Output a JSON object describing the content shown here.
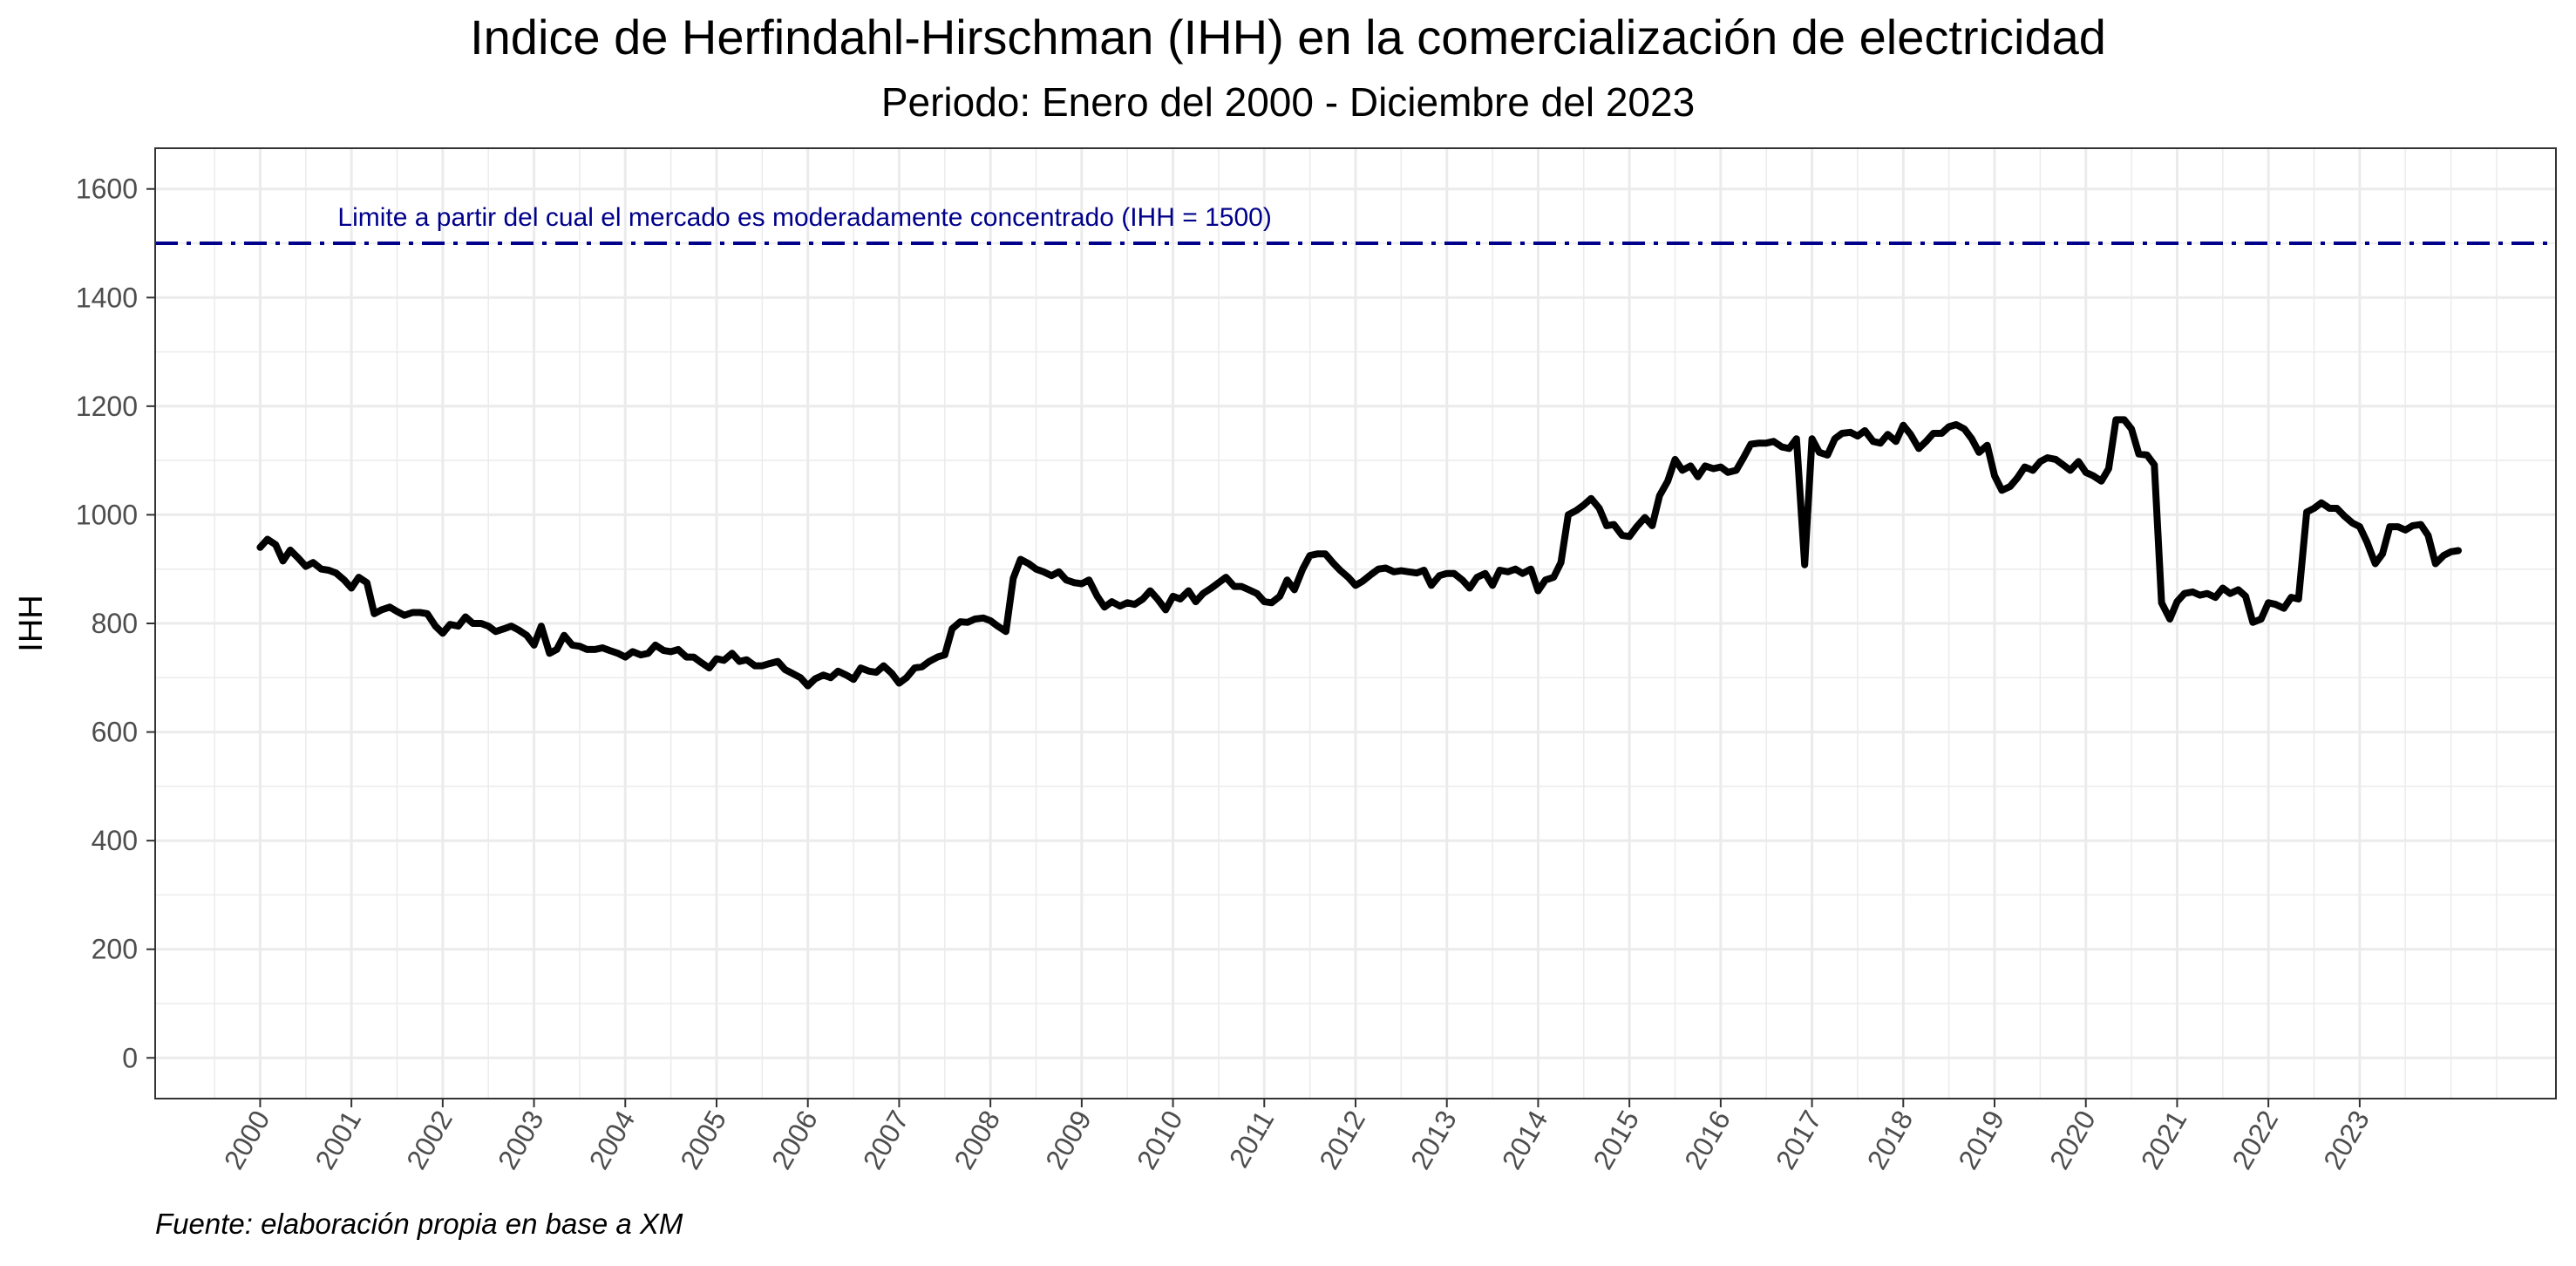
{
  "title": "Indice de Herfindahl-Hirschman (IHH) en la comercialización de electricidad",
  "subtitle": "Periodo: Enero del 2000 - Diciembre del 2023",
  "caption": "Fuente: elaboración propia en base a XM",
  "chart_data": {
    "type": "line",
    "xlabel": "",
    "ylabel": "IHH",
    "ylim": [
      -75,
      1675
    ],
    "xlim": [
      1998.85,
      2025.15
    ],
    "y_ticks": [
      0,
      200,
      400,
      600,
      800,
      1000,
      1200,
      1400,
      1600
    ],
    "x_ticks": [
      "2000",
      "2001",
      "2002",
      "2003",
      "2004",
      "2005",
      "2006",
      "2007",
      "2008",
      "2009",
      "2010",
      "2011",
      "2012",
      "2013",
      "2014",
      "2015",
      "2016",
      "2017",
      "2018",
      "2019",
      "2020",
      "2021",
      "2022",
      "2023"
    ],
    "grid": true,
    "legend": "none",
    "colors": {
      "series": "#000000",
      "reference": "#00008B",
      "grid": "#ebebeb",
      "panel_border": "#333333"
    },
    "reference_line": {
      "y": 1500,
      "style": "dashdot",
      "label": "Limite a partir del cual el mercado es moderadamente concentrado (IHH = 1500)"
    },
    "series": [
      {
        "points": [
          [
            2000.0,
            940
          ],
          [
            2000.08,
            955
          ],
          [
            2000.17,
            945
          ],
          [
            2000.25,
            915
          ],
          [
            2000.33,
            935
          ],
          [
            2000.42,
            920
          ],
          [
            2000.5,
            905
          ],
          [
            2000.58,
            912
          ],
          [
            2000.67,
            900
          ],
          [
            2000.75,
            898
          ],
          [
            2000.83,
            893
          ],
          [
            2000.92,
            880
          ],
          [
            2001.0,
            865
          ],
          [
            2001.08,
            885
          ],
          [
            2001.17,
            875
          ],
          [
            2001.25,
            818
          ],
          [
            2001.33,
            825
          ],
          [
            2001.42,
            830
          ],
          [
            2001.5,
            822
          ],
          [
            2001.58,
            815
          ],
          [
            2001.67,
            820
          ],
          [
            2001.75,
            820
          ],
          [
            2001.83,
            818
          ],
          [
            2001.92,
            795
          ],
          [
            2002.0,
            782
          ],
          [
            2002.08,
            798
          ],
          [
            2002.17,
            795
          ],
          [
            2002.25,
            812
          ],
          [
            2002.33,
            800
          ],
          [
            2002.42,
            800
          ],
          [
            2002.5,
            795
          ],
          [
            2002.58,
            785
          ],
          [
            2002.67,
            790
          ],
          [
            2002.75,
            795
          ],
          [
            2002.83,
            788
          ],
          [
            2002.92,
            778
          ],
          [
            2003.0,
            760
          ],
          [
            2003.08,
            795
          ],
          [
            2003.17,
            745
          ],
          [
            2003.25,
            752
          ],
          [
            2003.33,
            778
          ],
          [
            2003.42,
            760
          ],
          [
            2003.5,
            758
          ],
          [
            2003.58,
            752
          ],
          [
            2003.67,
            752
          ],
          [
            2003.75,
            755
          ],
          [
            2003.83,
            750
          ],
          [
            2003.92,
            745
          ],
          [
            2004.0,
            738
          ],
          [
            2004.08,
            748
          ],
          [
            2004.17,
            742
          ],
          [
            2004.25,
            745
          ],
          [
            2004.33,
            760
          ],
          [
            2004.42,
            750
          ],
          [
            2004.5,
            748
          ],
          [
            2004.58,
            752
          ],
          [
            2004.67,
            738
          ],
          [
            2004.75,
            738
          ],
          [
            2004.83,
            728
          ],
          [
            2004.92,
            718
          ],
          [
            2005.0,
            735
          ],
          [
            2005.08,
            732
          ],
          [
            2005.17,
            745
          ],
          [
            2005.25,
            730
          ],
          [
            2005.33,
            733
          ],
          [
            2005.42,
            722
          ],
          [
            2005.5,
            722
          ],
          [
            2005.58,
            726
          ],
          [
            2005.67,
            730
          ],
          [
            2005.75,
            715
          ],
          [
            2005.83,
            708
          ],
          [
            2005.92,
            700
          ],
          [
            2006.0,
            685
          ],
          [
            2006.08,
            698
          ],
          [
            2006.17,
            705
          ],
          [
            2006.25,
            700
          ],
          [
            2006.33,
            712
          ],
          [
            2006.42,
            705
          ],
          [
            2006.5,
            697
          ],
          [
            2006.58,
            718
          ],
          [
            2006.67,
            712
          ],
          [
            2006.75,
            710
          ],
          [
            2006.83,
            722
          ],
          [
            2006.92,
            708
          ],
          [
            2007.0,
            690
          ],
          [
            2007.08,
            700
          ],
          [
            2007.17,
            718
          ],
          [
            2007.25,
            720
          ],
          [
            2007.33,
            730
          ],
          [
            2007.42,
            738
          ],
          [
            2007.5,
            742
          ],
          [
            2007.58,
            790
          ],
          [
            2007.67,
            803
          ],
          [
            2007.75,
            802
          ],
          [
            2007.83,
            808
          ],
          [
            2007.92,
            810
          ],
          [
            2008.0,
            805
          ],
          [
            2008.08,
            795
          ],
          [
            2008.17,
            785
          ],
          [
            2008.25,
            883
          ],
          [
            2008.33,
            918
          ],
          [
            2008.42,
            910
          ],
          [
            2008.5,
            900
          ],
          [
            2008.58,
            895
          ],
          [
            2008.67,
            888
          ],
          [
            2008.75,
            895
          ],
          [
            2008.83,
            880
          ],
          [
            2008.92,
            875
          ],
          [
            2009.0,
            873
          ],
          [
            2009.08,
            880
          ],
          [
            2009.17,
            850
          ],
          [
            2009.25,
            830
          ],
          [
            2009.33,
            840
          ],
          [
            2009.42,
            832
          ],
          [
            2009.5,
            838
          ],
          [
            2009.58,
            835
          ],
          [
            2009.67,
            845
          ],
          [
            2009.75,
            860
          ],
          [
            2009.83,
            845
          ],
          [
            2009.92,
            825
          ],
          [
            2010.0,
            850
          ],
          [
            2010.08,
            845
          ],
          [
            2010.17,
            860
          ],
          [
            2010.25,
            840
          ],
          [
            2010.33,
            855
          ],
          [
            2010.42,
            865
          ],
          [
            2010.5,
            875
          ],
          [
            2010.58,
            885
          ],
          [
            2010.67,
            868
          ],
          [
            2010.75,
            868
          ],
          [
            2010.83,
            862
          ],
          [
            2010.92,
            855
          ],
          [
            2011.0,
            840
          ],
          [
            2011.08,
            838
          ],
          [
            2011.17,
            850
          ],
          [
            2011.25,
            880
          ],
          [
            2011.33,
            862
          ],
          [
            2011.42,
            900
          ],
          [
            2011.5,
            925
          ],
          [
            2011.58,
            928
          ],
          [
            2011.67,
            928
          ],
          [
            2011.75,
            912
          ],
          [
            2011.83,
            898
          ],
          [
            2011.92,
            885
          ],
          [
            2012.0,
            870
          ],
          [
            2012.08,
            878
          ],
          [
            2012.17,
            890
          ],
          [
            2012.25,
            900
          ],
          [
            2012.33,
            902
          ],
          [
            2012.42,
            895
          ],
          [
            2012.5,
            897
          ],
          [
            2012.58,
            895
          ],
          [
            2012.67,
            893
          ],
          [
            2012.75,
            898
          ],
          [
            2012.83,
            870
          ],
          [
            2012.92,
            888
          ],
          [
            2013.0,
            892
          ],
          [
            2013.08,
            892
          ],
          [
            2013.17,
            880
          ],
          [
            2013.25,
            865
          ],
          [
            2013.33,
            885
          ],
          [
            2013.42,
            892
          ],
          [
            2013.5,
            870
          ],
          [
            2013.58,
            898
          ],
          [
            2013.67,
            895
          ],
          [
            2013.75,
            900
          ],
          [
            2013.83,
            892
          ],
          [
            2013.92,
            900
          ],
          [
            2014.0,
            860
          ],
          [
            2014.08,
            880
          ],
          [
            2014.17,
            885
          ],
          [
            2014.25,
            912
          ],
          [
            2014.33,
            1000
          ],
          [
            2014.42,
            1008
          ],
          [
            2014.5,
            1018
          ],
          [
            2014.58,
            1030
          ],
          [
            2014.67,
            1012
          ],
          [
            2014.75,
            980
          ],
          [
            2014.83,
            982
          ],
          [
            2014.92,
            962
          ],
          [
            2015.0,
            960
          ],
          [
            2015.08,
            978
          ],
          [
            2015.17,
            995
          ],
          [
            2015.25,
            980
          ],
          [
            2015.33,
            1035
          ],
          [
            2015.42,
            1062
          ],
          [
            2015.5,
            1102
          ],
          [
            2015.58,
            1082
          ],
          [
            2015.67,
            1090
          ],
          [
            2015.75,
            1070
          ],
          [
            2015.83,
            1090
          ],
          [
            2015.92,
            1085
          ],
          [
            2016.0,
            1088
          ],
          [
            2016.08,
            1078
          ],
          [
            2016.17,
            1082
          ],
          [
            2016.25,
            1105
          ],
          [
            2016.33,
            1130
          ],
          [
            2016.42,
            1132
          ],
          [
            2016.5,
            1132
          ],
          [
            2016.58,
            1135
          ],
          [
            2016.67,
            1125
          ],
          [
            2016.75,
            1122
          ],
          [
            2016.83,
            1140
          ],
          [
            2016.92,
            908
          ],
          [
            2017.0,
            1140
          ],
          [
            2017.08,
            1115
          ],
          [
            2017.17,
            1110
          ],
          [
            2017.25,
            1140
          ],
          [
            2017.33,
            1150
          ],
          [
            2017.42,
            1152
          ],
          [
            2017.5,
            1145
          ],
          [
            2017.58,
            1155
          ],
          [
            2017.67,
            1135
          ],
          [
            2017.75,
            1132
          ],
          [
            2017.83,
            1148
          ],
          [
            2017.92,
            1135
          ],
          [
            2018.0,
            1165
          ],
          [
            2018.08,
            1148
          ],
          [
            2018.17,
            1122
          ],
          [
            2018.25,
            1135
          ],
          [
            2018.33,
            1150
          ],
          [
            2018.42,
            1150
          ],
          [
            2018.5,
            1162
          ],
          [
            2018.58,
            1166
          ],
          [
            2018.67,
            1158
          ],
          [
            2018.75,
            1140
          ],
          [
            2018.83,
            1115
          ],
          [
            2018.92,
            1128
          ],
          [
            2019.0,
            1072
          ],
          [
            2019.08,
            1045
          ],
          [
            2019.17,
            1052
          ],
          [
            2019.25,
            1068
          ],
          [
            2019.33,
            1088
          ],
          [
            2019.42,
            1082
          ],
          [
            2019.5,
            1098
          ],
          [
            2019.58,
            1105
          ],
          [
            2019.67,
            1102
          ],
          [
            2019.75,
            1092
          ],
          [
            2019.83,
            1082
          ],
          [
            2019.92,
            1098
          ],
          [
            2020.0,
            1078
          ],
          [
            2020.08,
            1072
          ],
          [
            2020.17,
            1062
          ],
          [
            2020.25,
            1085
          ],
          [
            2020.33,
            1175
          ],
          [
            2020.42,
            1175
          ],
          [
            2020.5,
            1158
          ],
          [
            2020.58,
            1112
          ],
          [
            2020.67,
            1110
          ],
          [
            2020.75,
            1092
          ],
          [
            2020.83,
            838
          ],
          [
            2020.92,
            808
          ],
          [
            2021.0,
            840
          ],
          [
            2021.08,
            855
          ],
          [
            2021.17,
            858
          ],
          [
            2021.25,
            852
          ],
          [
            2021.33,
            855
          ],
          [
            2021.42,
            848
          ],
          [
            2021.5,
            865
          ],
          [
            2021.58,
            855
          ],
          [
            2021.67,
            862
          ],
          [
            2021.75,
            850
          ],
          [
            2021.83,
            802
          ],
          [
            2021.92,
            808
          ],
          [
            2022.0,
            838
          ],
          [
            2022.08,
            835
          ],
          [
            2022.17,
            828
          ],
          [
            2022.25,
            848
          ],
          [
            2022.33,
            845
          ],
          [
            2022.42,
            1005
          ],
          [
            2022.5,
            1012
          ],
          [
            2022.58,
            1022
          ],
          [
            2022.67,
            1012
          ],
          [
            2022.75,
            1012
          ],
          [
            2022.83,
            998
          ],
          [
            2022.92,
            985
          ],
          [
            2023.0,
            978
          ],
          [
            2023.08,
            950
          ],
          [
            2023.17,
            910
          ],
          [
            2023.25,
            928
          ],
          [
            2023.33,
            978
          ],
          [
            2023.42,
            978
          ],
          [
            2023.5,
            972
          ],
          [
            2023.58,
            980
          ],
          [
            2023.67,
            982
          ],
          [
            2023.75,
            962
          ],
          [
            2023.83,
            910
          ],
          [
            2023.92,
            925
          ],
          [
            2024.0,
            932
          ],
          [
            2024.08,
            934
          ]
        ]
      }
    ]
  }
}
